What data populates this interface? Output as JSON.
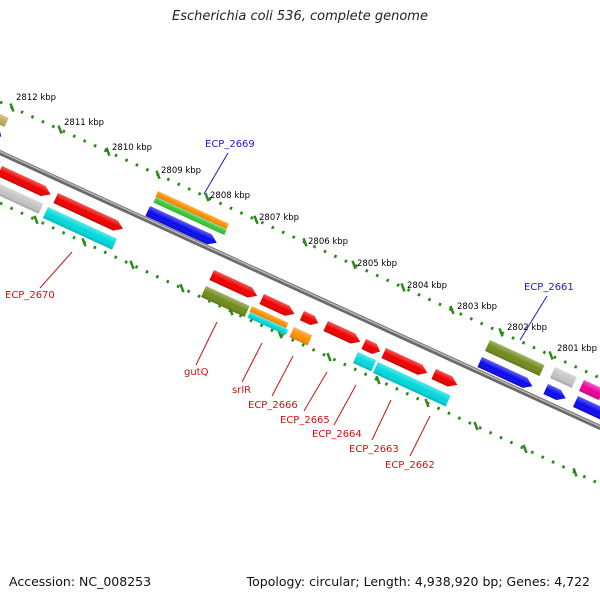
{
  "title": "Escherichia coli 536, complete genome",
  "footer": {
    "accession": "Accession: NC_008253",
    "summary": "Topology: circular; Length: 4,938,920 bp; Genes: 4,722"
  },
  "colors": {
    "backbone": "#8a8a8a",
    "ruler": "#2a8a1a",
    "label_blue": "#1a1ad0",
    "label_red": "#d01010",
    "red": "#ee0000",
    "blue": "#0a0aee",
    "cyan": "#00d8dc",
    "gray": "#c4c4c4",
    "olive": "#708b1c",
    "orange": "#ff9000",
    "green": "#38c838",
    "magenta": "#ee0099",
    "khaki": "#bcb060"
  },
  "ruler_labels": [
    "2812 kbp",
    "2811 kbp",
    "2810 kbp",
    "2809 kbp",
    "2808 kbp",
    "2807 kbp",
    "2806 kbp",
    "2805 kbp",
    "2804 kbp",
    "2803 kbp",
    "2802 kbp",
    "2801 kbp"
  ],
  "callouts": [
    {
      "text": "ECP_2669",
      "color": "blue"
    },
    {
      "text": "ECP_2661",
      "color": "blue"
    },
    {
      "text": "ECP_2670",
      "color": "red"
    },
    {
      "text": "gutQ",
      "color": "red"
    },
    {
      "text": "srlR",
      "color": "red"
    },
    {
      "text": "ECP_2666",
      "color": "red"
    },
    {
      "text": "ECP_2665",
      "color": "red"
    },
    {
      "text": "ECP_2664",
      "color": "red"
    },
    {
      "text": "ECP_2663",
      "color": "red"
    },
    {
      "text": "ECP_2662",
      "color": "red"
    }
  ]
}
